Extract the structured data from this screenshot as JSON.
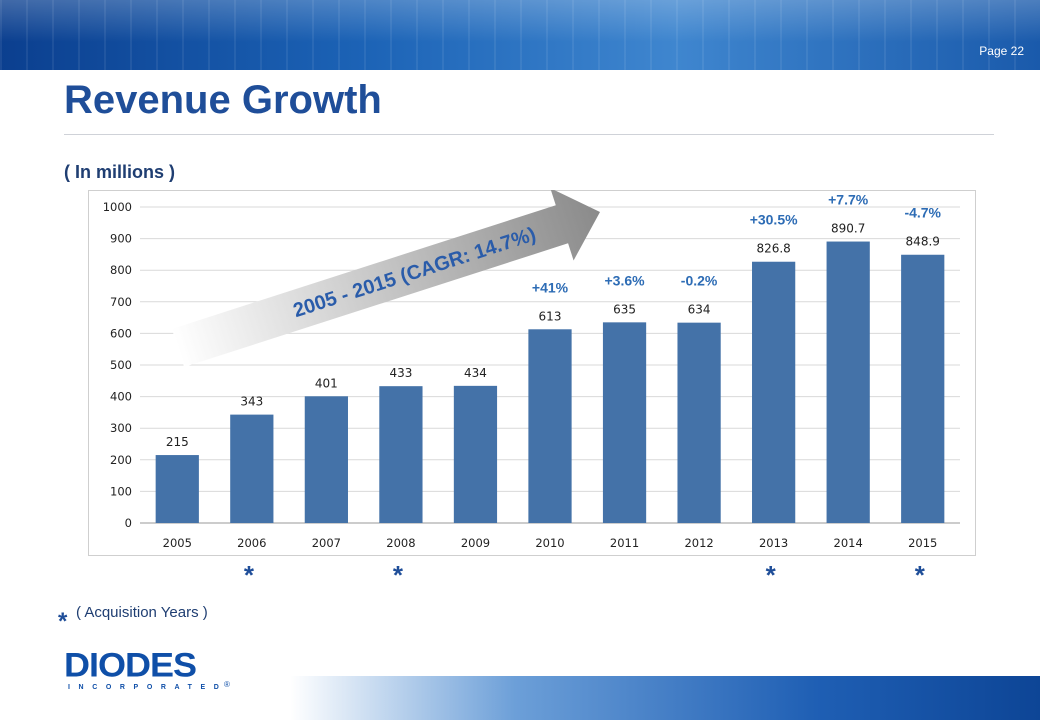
{
  "header": {
    "page_label": "Page 22"
  },
  "slide": {
    "title": "Revenue Growth",
    "subtitle": "( In millions )"
  },
  "chart_data": {
    "type": "bar",
    "title": "",
    "xlabel": "",
    "ylabel": "",
    "categories": [
      "2005",
      "2006",
      "2007",
      "2008",
      "2009",
      "2010",
      "2011",
      "2012",
      "2013",
      "2014",
      "2015"
    ],
    "values": [
      215,
      343,
      401,
      433,
      434,
      613,
      635,
      634,
      826.8,
      890.7,
      848.9
    ],
    "value_labels": [
      "215",
      "343",
      "401",
      "433",
      "434",
      "613",
      "635",
      "634",
      "826.8",
      "890.7",
      "848.9"
    ],
    "ylim": [
      0,
      1000
    ],
    "yticks": [
      0,
      100,
      200,
      300,
      400,
      500,
      600,
      700,
      800,
      900,
      1000
    ],
    "grid": true,
    "bar_color": "#4472a8",
    "growth_annotations": [
      {
        "category": "2010",
        "text": "+41%"
      },
      {
        "category": "2011",
        "text": "+3.6%"
      },
      {
        "category": "2012",
        "text": "-0.2%"
      },
      {
        "category": "2013",
        "text": "+30.5%"
      },
      {
        "category": "2014",
        "text": "+7.7%"
      },
      {
        "category": "2015",
        "text": "-4.7%"
      }
    ],
    "trend_arrow_label": "2005 - 2015 (CAGR: 14.7%)",
    "acquisition_years": [
      "2006",
      "2008",
      "2013",
      "2015"
    ]
  },
  "footnote": {
    "marker": "*",
    "text": "( Acquisition Years )"
  },
  "logo": {
    "name": "DIODES",
    "sub": "INCORPORATED",
    "mark": "®"
  },
  "colors": {
    "title": "#1f4e99",
    "accent": "#2d6cb5",
    "bar": "#4472a8"
  }
}
